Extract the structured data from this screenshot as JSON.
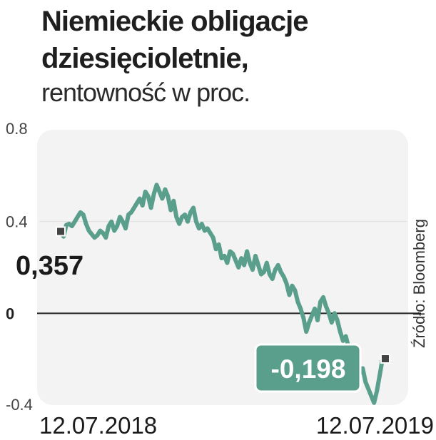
{
  "title_line1": "Niemieckie obligacje",
  "title_line2": "dziesięcioletnie,",
  "subtitle": "rentowność w proc.",
  "source": "Źródło: Bloomberg",
  "colors": {
    "line": "#5a9e8c",
    "label_box": "#5a9e8c",
    "panel": "#f3f3f3",
    "zero_line": "#222222"
  },
  "chart_data": {
    "type": "line",
    "ylim": [
      -0.4,
      0.8
    ],
    "y_ticks": [
      {
        "value": 0.8,
        "label": "0.8"
      },
      {
        "value": 0.4,
        "label": "0.4"
      },
      {
        "value": 0,
        "label": "0"
      },
      {
        "value": -0.4,
        "label": "-0.4"
      }
    ],
    "x_start_label": "12.07.2018",
    "x_end_label": "12.07.2019",
    "start_value": 0.357,
    "start_value_label": "0,357",
    "end_value": -0.198,
    "end_value_label": "-0,198",
    "values": [
      0.357,
      0.335,
      0.385,
      0.39,
      0.38,
      0.4,
      0.42,
      0.44,
      0.43,
      0.39,
      0.36,
      0.345,
      0.33,
      0.34,
      0.36,
      0.35,
      0.33,
      0.38,
      0.4,
      0.36,
      0.38,
      0.42,
      0.4,
      0.37,
      0.43,
      0.44,
      0.46,
      0.48,
      0.5,
      0.47,
      0.53,
      0.51,
      0.46,
      0.52,
      0.56,
      0.53,
      0.5,
      0.54,
      0.51,
      0.45,
      0.49,
      0.42,
      0.39,
      0.42,
      0.43,
      0.4,
      0.44,
      0.46,
      0.4,
      0.37,
      0.39,
      0.36,
      0.37,
      0.35,
      0.33,
      0.28,
      0.3,
      0.24,
      0.25,
      0.22,
      0.27,
      0.26,
      0.23,
      0.2,
      0.24,
      0.21,
      0.27,
      0.22,
      0.19,
      0.25,
      0.21,
      0.17,
      0.18,
      0.22,
      0.17,
      0.15,
      0.19,
      0.21,
      0.18,
      0.16,
      0.13,
      0.08,
      0.12,
      0.1,
      0.05,
      0.02,
      -0.02,
      -0.08,
      -0.04,
      -0.01,
      0.02,
      -0.03,
      0.05,
      0.07,
      0.03,
      0.0,
      -0.04,
      0.0,
      -0.03,
      -0.08,
      -0.12,
      -0.1,
      -0.15,
      -0.21,
      -0.18,
      -0.23,
      -0.26,
      -0.24,
      -0.3,
      -0.33,
      -0.36,
      -0.39,
      -0.34,
      -0.27,
      -0.2,
      -0.198
    ]
  }
}
